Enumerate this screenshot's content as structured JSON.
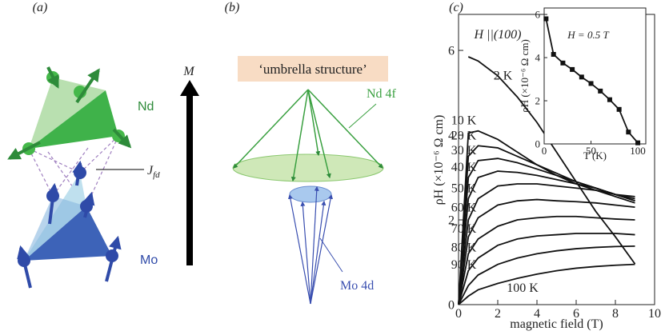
{
  "panel_a": {
    "label": "(a)",
    "nd": "Nd",
    "mo": "Mo",
    "coupling": {
      "symbol": "J",
      "subscript": "fd"
    },
    "moment": "M"
  },
  "panel_b": {
    "label": "(b)",
    "box": "‘umbrella structure’",
    "nd": "Nd 4f",
    "mo": "Mo 4d"
  },
  "panel_c": {
    "label": "(c)"
  },
  "chart_data": [
    {
      "type": "line",
      "xlabel": "magnetic field (T)",
      "ylabel": "ρH (×10⁻⁶ Ω cm)",
      "annotation": "H ||(100)",
      "color": "#111111",
      "xlim": [
        0,
        10
      ],
      "xticks": [
        0,
        2,
        4,
        6,
        8,
        10
      ],
      "ylim": [
        0,
        6.85
      ],
      "yticks": [
        0,
        2,
        4,
        6
      ],
      "x": [
        0,
        0.5,
        1,
        2,
        3,
        4,
        5,
        6,
        7,
        8,
        9
      ],
      "series": [
        {
          "name": "2 K",
          "values": [
            null,
            5.85,
            5.75,
            5.4,
            4.9,
            4.3,
            3.6,
            2.9,
            2.2,
            1.6,
            0.96
          ]
        },
        {
          "name": "10 K",
          "values": [
            0,
            4.05,
            4.1,
            3.9,
            3.6,
            3.3,
            3.05,
            2.85,
            2.7,
            2.55,
            2.4
          ]
        },
        {
          "name": "20 K",
          "values": [
            0,
            3.5,
            3.75,
            3.7,
            3.5,
            3.3,
            3.1,
            2.9,
            2.75,
            2.6,
            2.45
          ]
        },
        {
          "name": "30 K",
          "values": [
            0,
            3.0,
            3.4,
            3.45,
            3.35,
            3.2,
            3.05,
            2.9,
            2.75,
            2.6,
            2.45
          ]
        },
        {
          "name": "40 K",
          "values": [
            0,
            2.5,
            3.0,
            3.15,
            3.12,
            3.05,
            2.95,
            2.85,
            2.75,
            2.6,
            2.5
          ]
        },
        {
          "name": "50 K",
          "values": [
            0,
            2.0,
            2.5,
            2.8,
            2.85,
            2.85,
            2.8,
            2.75,
            2.7,
            2.6,
            2.55
          ]
        },
        {
          "name": "60 K",
          "values": [
            0,
            1.6,
            2.05,
            2.35,
            2.45,
            2.48,
            2.45,
            2.43,
            2.4,
            2.35,
            2.3
          ]
        },
        {
          "name": "70 K",
          "values": [
            0,
            1.2,
            1.55,
            1.85,
            2.0,
            2.05,
            2.08,
            2.08,
            2.05,
            2.02,
            2.0
          ]
        },
        {
          "name": "80 K",
          "values": [
            0,
            0.8,
            1.1,
            1.4,
            1.55,
            1.62,
            1.65,
            1.68,
            1.68,
            1.68,
            1.65
          ]
        },
        {
          "name": "90 K",
          "values": [
            0,
            0.45,
            0.7,
            0.95,
            1.1,
            1.2,
            1.27,
            1.32,
            1.35,
            1.37,
            1.38
          ]
        },
        {
          "name": "100 K",
          "values": [
            0,
            0.2,
            0.35,
            0.5,
            0.62,
            0.72,
            0.8,
            0.86,
            0.9,
            0.93,
            0.95
          ]
        }
      ]
    },
    {
      "type": "line",
      "marker": "square",
      "color": "#111111",
      "xlabel": "T (K)",
      "ylabel": "ρH (×10⁻⁶ Ω cm)",
      "annotation": "H = 0.5 T",
      "xlim": [
        0,
        108.5
      ],
      "xticks": [
        0,
        50,
        100
      ],
      "ylim": [
        0,
        6.3
      ],
      "yticks": [
        0,
        2,
        4,
        6
      ],
      "x": [
        2,
        10,
        20,
        30,
        40,
        50,
        60,
        70,
        80,
        90,
        100
      ],
      "values": [
        5.8,
        4.15,
        3.75,
        3.45,
        3.1,
        2.8,
        2.45,
        2.05,
        1.6,
        0.55,
        0.05
      ]
    }
  ]
}
